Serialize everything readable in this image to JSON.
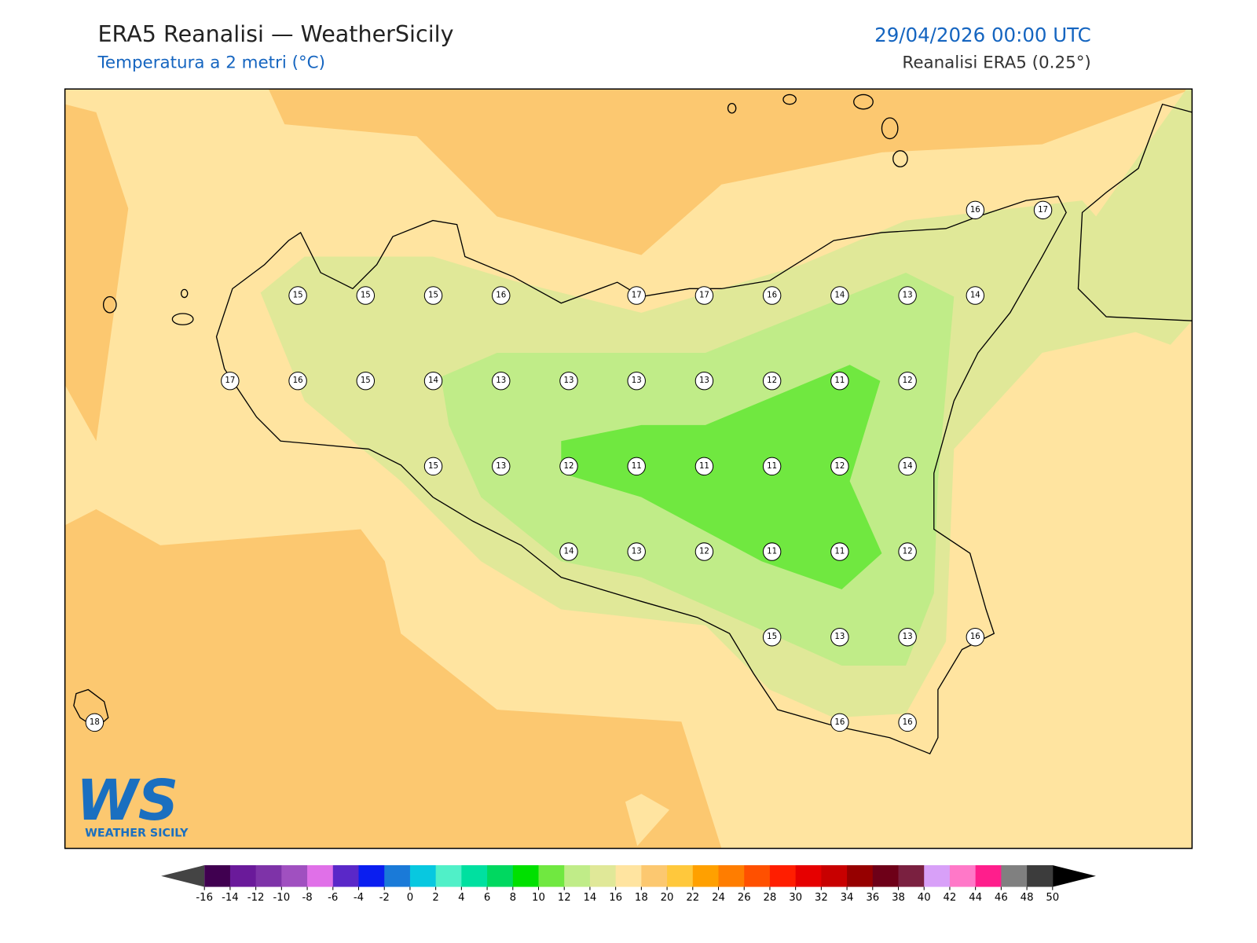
{
  "header": {
    "title": "ERA5 Reanalisi — WeatherSicily",
    "subtitle": "Temperatura a 2 metri (°C)",
    "date": "29/04/2026 00:00 UTC",
    "source": "Reanalisi ERA5 (0.25°)"
  },
  "map": {
    "stations": [
      16,
      17,
      15,
      15,
      15,
      16,
      17,
      17,
      16,
      14,
      13,
      14,
      17,
      16,
      15,
      14,
      13,
      13,
      13,
      13,
      12,
      11,
      12,
      15,
      13,
      12,
      11,
      11,
      11,
      12,
      14,
      14,
      13,
      12,
      11,
      11,
      12,
      15,
      13,
      13,
      16,
      18,
      16,
      16
    ]
  },
  "colorbar": {
    "ticks": [
      -16,
      -14,
      -12,
      -10,
      -8,
      -6,
      -4,
      -2,
      0,
      2,
      4,
      6,
      8,
      10,
      12,
      14,
      16,
      18,
      20,
      22,
      24,
      26,
      28,
      30,
      32,
      34,
      36,
      38,
      40,
      42,
      44,
      46,
      48,
      50
    ],
    "colors": [
      "#400050",
      "#6a1a9a",
      "#7e33a8",
      "#a050c0",
      "#e070e8",
      "#5a28c8",
      "#0a1ef0",
      "#1a7ad8",
      "#08c8e0",
      "#50f0c8",
      "#00e0a0",
      "#00d860",
      "#00e000",
      "#70e840",
      "#c0ec88",
      "#e0e898",
      "#ffe4a0",
      "#fcc870",
      "#ffc83c",
      "#ffa000",
      "#ff7d00",
      "#ff5000",
      "#ff1e00",
      "#e60000",
      "#c80000",
      "#960000",
      "#6e0018",
      "#7a2040",
      "#d8a0f8",
      "#ff78c8",
      "#ff1e8c",
      "#808080",
      "#3c3c3c"
    ],
    "under_color": "#444444",
    "over_color": "#000000"
  },
  "logo": {
    "mark": "WS",
    "name": "WEATHER SICILY"
  }
}
